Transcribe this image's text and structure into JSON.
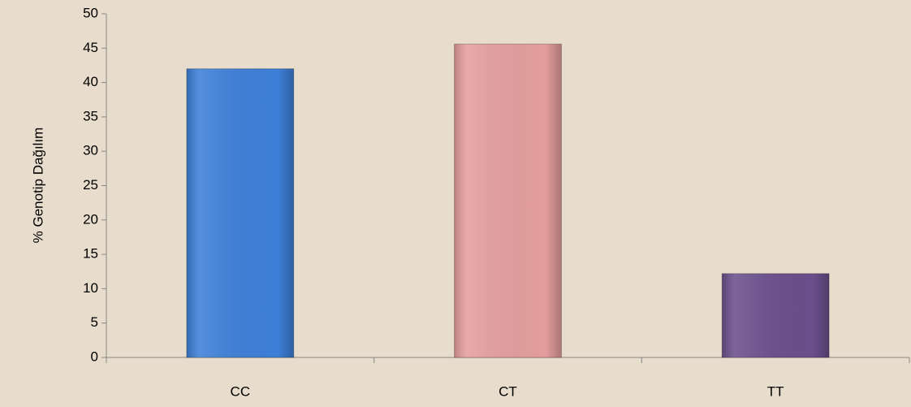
{
  "chart_data": {
    "type": "bar",
    "y_label": "% Genotip Dağılım",
    "categories": [
      "CC",
      "CT",
      "TT"
    ],
    "values": [
      42,
      45.6,
      12.2
    ],
    "colors": [
      "#3d7fd8",
      "#e59e9e",
      "#6b4f8c"
    ],
    "ylim": [
      0,
      50
    ],
    "yticks": [
      0,
      5,
      10,
      15,
      20,
      25,
      30,
      35,
      40,
      45,
      50
    ],
    "grid": false
  }
}
